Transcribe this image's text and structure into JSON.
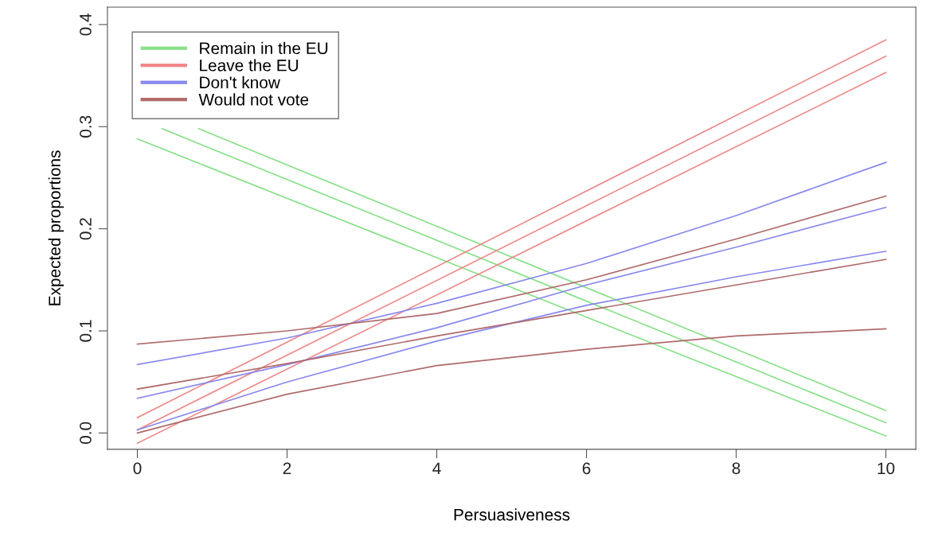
{
  "chart_data": {
    "type": "line",
    "xlabel": "Persuasiveness",
    "ylabel": "Expected proportions",
    "xlim": [
      -0.4,
      10.4
    ],
    "ylim": [
      -0.016,
      0.417
    ],
    "xticks": [
      0,
      2,
      4,
      6,
      8,
      10
    ],
    "yticks": [
      {
        "value": 0,
        "label": "0.0"
      },
      0.1,
      0.2,
      0.3,
      0.4
    ],
    "grid": false,
    "legend": "top left",
    "marker": "none",
    "line_style": "solid",
    "series": [
      {
        "name": "Remain in the EU",
        "color": "#88e088",
        "x": [
          0.33,
          10
        ],
        "values": [
          0.298,
          0.01
        ]
      },
      {
        "color": "#88e088",
        "x": [
          0.82,
          10
        ],
        "values": [
          0.298,
          0.022
        ]
      },
      {
        "color": "#88e088",
        "x": [
          0,
          10
        ],
        "values": [
          0.288,
          -0.003
        ]
      },
      {
        "name": "Leave the EU",
        "color": "#ee8888",
        "x": [
          0,
          10
        ],
        "values": [
          0.003,
          0.369
        ]
      },
      {
        "color": "#ee8888",
        "x": [
          0,
          10
        ],
        "values": [
          0.015,
          0.385
        ]
      },
      {
        "color": "#ee8888",
        "x": [
          0,
          10
        ],
        "values": [
          -0.01,
          0.353
        ]
      },
      {
        "name": "Don't know",
        "color": "#8888ee",
        "x": [
          0,
          2,
          4,
          6,
          8,
          10
        ],
        "values": [
          0.034,
          0.067,
          0.103,
          0.145,
          0.182,
          0.221
        ]
      },
      {
        "color": "#8888ee",
        "x": [
          0,
          2,
          4,
          6,
          8,
          10
        ],
        "values": [
          0.067,
          0.093,
          0.127,
          0.166,
          0.213,
          0.265
        ]
      },
      {
        "color": "#8888ee",
        "x": [
          0,
          2,
          4,
          6,
          8,
          10
        ],
        "values": [
          0.003,
          0.05,
          0.09,
          0.125,
          0.153,
          0.178
        ]
      },
      {
        "name": "Would not vote",
        "color": "#b06a6a",
        "x": [
          0,
          2,
          4,
          6,
          8,
          10
        ],
        "values": [
          0.043,
          0.068,
          0.095,
          0.12,
          0.145,
          0.17
        ]
      },
      {
        "color": "#b06a6a",
        "x": [
          0,
          2,
          4,
          6,
          8,
          10
        ],
        "values": [
          0.087,
          0.1,
          0.117,
          0.15,
          0.19,
          0.232
        ]
      },
      {
        "color": "#b06a6a",
        "x": [
          0,
          2,
          4,
          6,
          8,
          10
        ],
        "values": [
          0.0,
          0.038,
          0.066,
          0.082,
          0.095,
          0.102
        ]
      }
    ]
  }
}
